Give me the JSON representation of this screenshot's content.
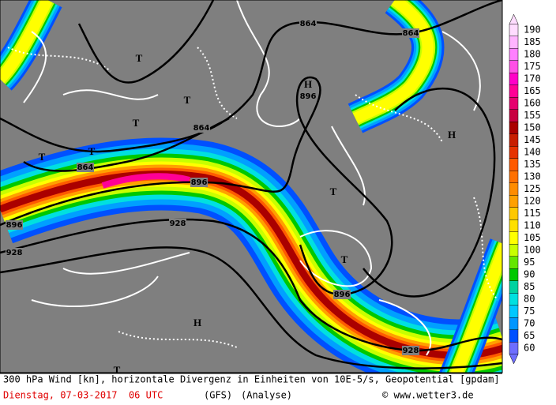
{
  "map": {
    "caption": {
      "line1": "300 hPa Wind [kn], horizontale Divergenz in Einheiten von 10E-5/s, Geopotential [gpdam]",
      "date": "Dienstag, 07-03-2017  06 UTC",
      "model": "(GFS)",
      "run": "(Analyse)",
      "source": "© www.wetter3.de"
    },
    "legend": {
      "levels": [
        190,
        185,
        180,
        175,
        170,
        165,
        160,
        155,
        150,
        145,
        140,
        135,
        130,
        125,
        120,
        115,
        110,
        105,
        100,
        95,
        90,
        85,
        80,
        75,
        70,
        65,
        60
      ],
      "colors": [
        "#ffdcff",
        "#ffb4ff",
        "#ff80ff",
        "#ff50e6",
        "#ff00c8",
        "#ff0096",
        "#e6006e",
        "#c80040",
        "#aa0000",
        "#c81e00",
        "#e63200",
        "#ff5a00",
        "#ff7000",
        "#ff8c00",
        "#ffa000",
        "#ffc800",
        "#ffe000",
        "#ffff00",
        "#c8ff00",
        "#64e600",
        "#00c800",
        "#00d2a0",
        "#00e0e0",
        "#00c8ff",
        "#0096ff",
        "#0050ff",
        "#6e6eff"
      ]
    },
    "contour_labels": [
      864,
      864,
      864,
      864,
      896,
      896,
      896,
      896,
      928,
      928,
      928
    ],
    "pressure_centers": [
      "H",
      "H",
      "H",
      "T",
      "T",
      "T",
      "T",
      "T",
      "T",
      "T",
      "T"
    ]
  }
}
